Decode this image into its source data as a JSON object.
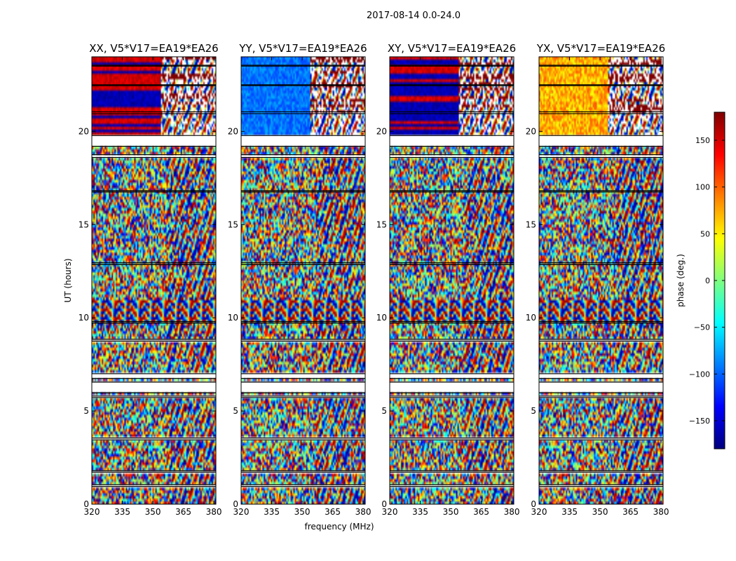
{
  "chart_data": {
    "type": "heatmap",
    "suptitle": "2017-08-14 0.0-24.0",
    "xlabel": "frequency (MHz)",
    "ylabel": "UT (hours)",
    "xlim": [
      320,
      381
    ],
    "ylim": [
      0,
      24
    ],
    "xticks": [
      320,
      335,
      350,
      365,
      380
    ],
    "yticks": [
      0,
      5,
      10,
      15,
      20
    ],
    "panels": [
      {
        "title": "XX, V5*V17=EA19*EA26",
        "polarization": "XX"
      },
      {
        "title": "YY, V5*V17=EA19*EA26",
        "polarization": "YY"
      },
      {
        "title": "XY, V5*V17=EA19*EA26",
        "polarization": "XY"
      },
      {
        "title": "YX, V5*V17=EA19*EA26",
        "polarization": "YX"
      }
    ],
    "colorbar": {
      "label": "phase (deg.)",
      "range": [
        -180,
        180
      ],
      "ticks": [
        -150,
        -100,
        -50,
        0,
        50,
        100,
        150
      ],
      "tick_labels": [
        "−150",
        "−100",
        "−50",
        "0",
        "50",
        "100",
        "150"
      ],
      "colormap": [
        "#00007f",
        "#0000ff",
        "#007fff",
        "#00ffff",
        "#7fff7f",
        "#ffff00",
        "#ff7f00",
        "#ff0000",
        "#7f0000"
      ]
    },
    "gaps_ut_hours": [
      [
        0.95,
        1.05
      ],
      [
        1.72,
        1.8
      ],
      [
        3.45,
        3.55
      ],
      [
        5.72,
        5.8
      ],
      [
        5.98,
        6.55
      ],
      [
        6.75,
        7.0
      ],
      [
        8.75,
        8.85
      ],
      [
        9.72,
        9.8
      ],
      [
        12.85,
        12.95
      ],
      [
        16.75,
        16.82
      ],
      [
        18.6,
        18.75
      ],
      [
        19.2,
        19.78
      ],
      [
        20.95,
        21.05
      ],
      [
        22.45,
        22.5
      ],
      [
        23.5,
        23.55
      ]
    ]
  }
}
